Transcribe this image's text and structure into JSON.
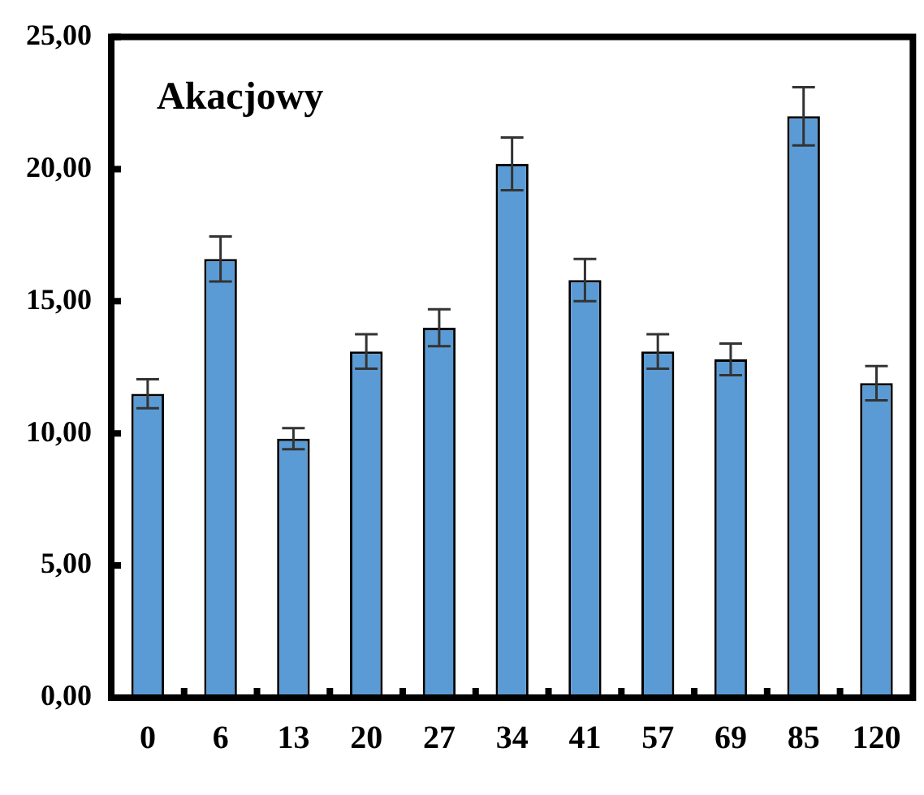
{
  "chart_data": {
    "type": "bar",
    "title": "Akacjowy",
    "categories": [
      "0",
      "6",
      "13",
      "20",
      "27",
      "34",
      "41",
      "57",
      "69",
      "85",
      "120"
    ],
    "values": [
      11.5,
      16.6,
      9.8,
      13.1,
      14.0,
      20.2,
      15.8,
      13.1,
      12.8,
      22.0,
      11.9
    ],
    "errors": [
      0.55,
      0.85,
      0.4,
      0.65,
      0.7,
      1.0,
      0.8,
      0.65,
      0.6,
      1.1,
      0.65
    ],
    "color": "#5b9bd5",
    "ylim": [
      0,
      25
    ],
    "yticks": [
      {
        "value": 0,
        "label": "0,00"
      },
      {
        "value": 5,
        "label": "5,00"
      },
      {
        "value": 10,
        "label": "10,00"
      },
      {
        "value": 15,
        "label": "15,00"
      },
      {
        "value": 20,
        "label": "20,00"
      },
      {
        "value": 25,
        "label": "25,00"
      }
    ],
    "grid": false,
    "legend": false
  }
}
